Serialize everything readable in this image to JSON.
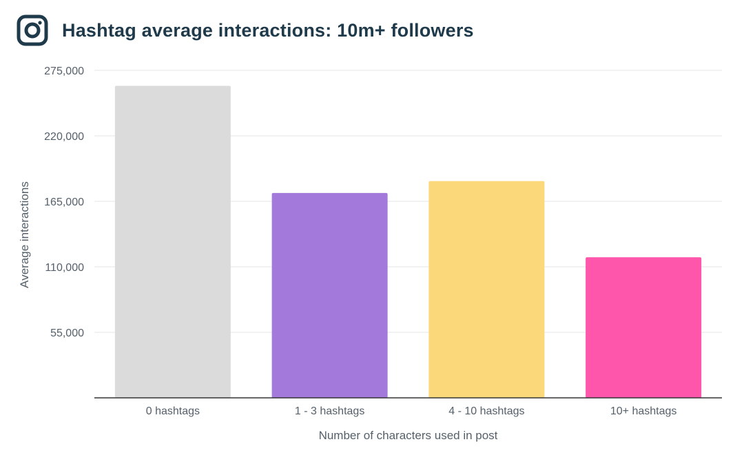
{
  "header": {
    "title": "Hashtag average interactions: 10m+ followers",
    "logo_icon": "instagram-icon"
  },
  "chart_data": {
    "type": "bar",
    "title": "Hashtag average interactions: 10m+ followers",
    "xlabel": "Number of characters used in post",
    "ylabel": "Average interactions",
    "categories": [
      "0 hashtags",
      "1 - 3 hashtags",
      "4 - 10 hashtags",
      "10+ hashtags"
    ],
    "values": [
      262000,
      172000,
      182000,
      118000
    ],
    "colors": [
      "#dcdbdb",
      "#a479dc",
      "#fbd87a",
      "#fd56ab"
    ],
    "yticks": [
      55000,
      110000,
      165000,
      220000,
      275000
    ],
    "ytick_labels": [
      "55,000",
      "110,000",
      "165,000",
      "220,000",
      "275,000"
    ],
    "ylim": [
      0,
      275000
    ],
    "grid": true
  }
}
